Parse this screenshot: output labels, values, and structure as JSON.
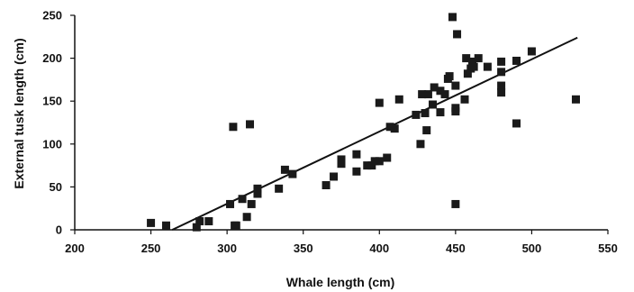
{
  "chart_data": {
    "type": "scatter",
    "title": "",
    "xlabel": "Whale length (cm)",
    "ylabel": "External tusk length (cm)",
    "xlim": [
      200,
      550
    ],
    "ylim": [
      0,
      250
    ],
    "x_ticks": [
      200,
      250,
      300,
      350,
      400,
      450,
      500,
      550
    ],
    "y_ticks": [
      0,
      50,
      100,
      150,
      200,
      250
    ],
    "grid": false,
    "legend": "none",
    "marker": "square",
    "marker_color": "#1a1a1a",
    "points": [
      [
        250,
        8
      ],
      [
        260,
        5
      ],
      [
        280,
        3
      ],
      [
        282,
        10
      ],
      [
        288,
        10
      ],
      [
        302,
        30
      ],
      [
        304,
        120
      ],
      [
        305,
        5
      ],
      [
        306,
        5
      ],
      [
        310,
        36
      ],
      [
        313,
        15
      ],
      [
        315,
        123
      ],
      [
        316,
        30
      ],
      [
        320,
        42
      ],
      [
        320,
        48
      ],
      [
        334,
        48
      ],
      [
        338,
        70
      ],
      [
        343,
        65
      ],
      [
        365,
        52
      ],
      [
        370,
        62
      ],
      [
        375,
        77
      ],
      [
        375,
        82
      ],
      [
        385,
        68
      ],
      [
        385,
        88
      ],
      [
        392,
        75
      ],
      [
        395,
        75
      ],
      [
        397,
        80
      ],
      [
        400,
        80
      ],
      [
        400,
        148
      ],
      [
        405,
        84
      ],
      [
        407,
        120
      ],
      [
        410,
        118
      ],
      [
        413,
        152
      ],
      [
        424,
        134
      ],
      [
        427,
        100
      ],
      [
        428,
        158
      ],
      [
        430,
        136
      ],
      [
        431,
        116
      ],
      [
        432,
        158
      ],
      [
        435,
        146
      ],
      [
        436,
        166
      ],
      [
        440,
        137
      ],
      [
        440,
        162
      ],
      [
        443,
        158
      ],
      [
        445,
        176
      ],
      [
        446,
        179
      ],
      [
        448,
        248
      ],
      [
        450,
        30
      ],
      [
        450,
        138
      ],
      [
        450,
        142
      ],
      [
        450,
        168
      ],
      [
        451,
        228
      ],
      [
        456,
        152
      ],
      [
        457,
        200
      ],
      [
        458,
        182
      ],
      [
        460,
        188
      ],
      [
        461,
        196
      ],
      [
        462,
        190
      ],
      [
        465,
        200
      ],
      [
        471,
        190
      ],
      [
        480,
        160
      ],
      [
        480,
        168
      ],
      [
        480,
        184
      ],
      [
        480,
        196
      ],
      [
        490,
        124
      ],
      [
        490,
        197
      ],
      [
        500,
        208
      ],
      [
        529,
        152
      ]
    ],
    "trendline": {
      "x": [
        264,
        530
      ],
      "y": [
        0,
        224
      ]
    }
  }
}
